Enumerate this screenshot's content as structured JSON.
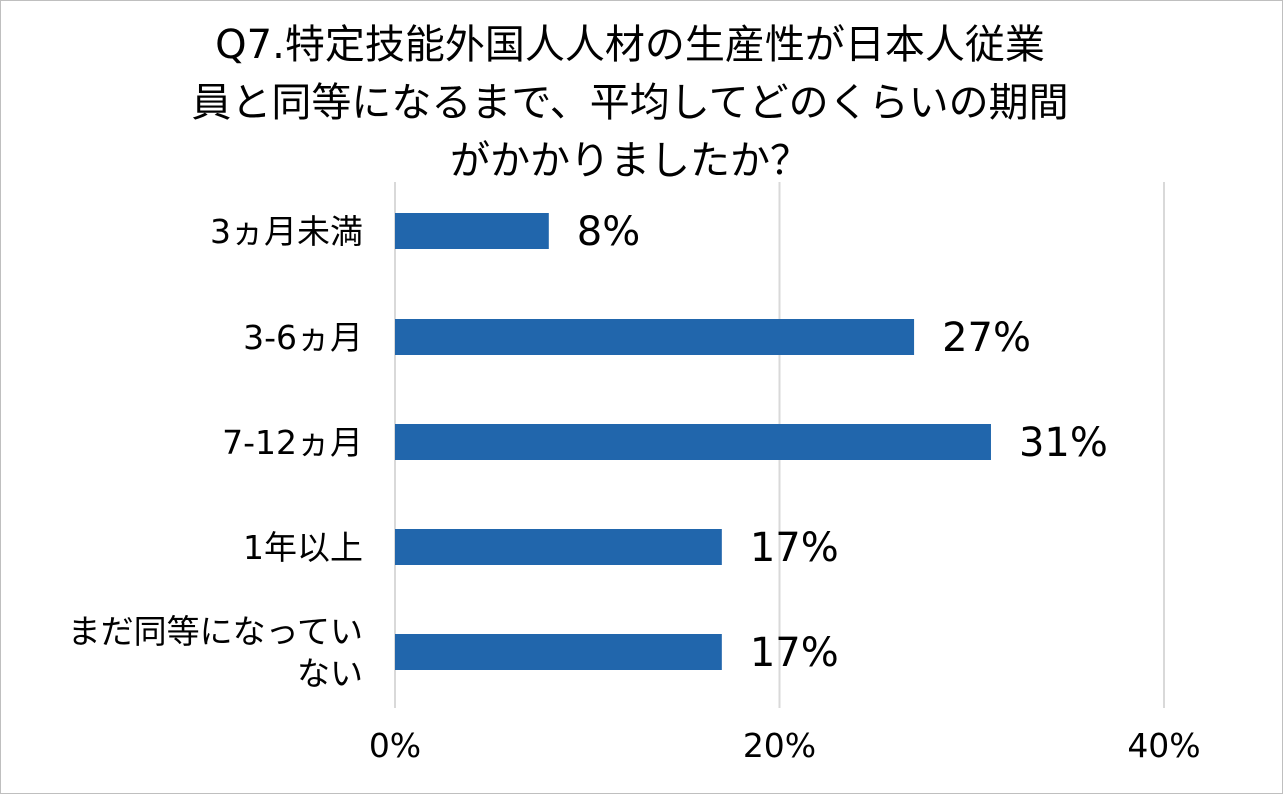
{
  "chart_data": {
    "type": "bar",
    "orientation": "horizontal",
    "title_lines": [
      "Q7.特定技能外国人人材の生産性が日本人従業",
      "員と同等になるまで、平均してどのくらいの期間",
      "がかかりましたか？"
    ],
    "categories": [
      [
        "3ヵ月未満"
      ],
      [
        "3-6ヵ月"
      ],
      [
        "7-12ヵ月"
      ],
      [
        "1年以上"
      ],
      [
        "まだ同等になってい",
        "ない"
      ]
    ],
    "values": [
      8,
      27,
      31,
      17,
      17
    ],
    "value_labels": [
      "8%",
      "27%",
      "31%",
      "17%",
      "17%"
    ],
    "xlim": [
      0,
      40
    ],
    "x_ticks": [
      0,
      20,
      40
    ],
    "x_tick_labels": [
      "0%",
      "20%",
      "40%"
    ],
    "grid": "vertical",
    "legend": "none",
    "colors": {
      "bar": "#2166ac",
      "grid": "#d9d9d9",
      "border": "#bfbfbf"
    }
  }
}
